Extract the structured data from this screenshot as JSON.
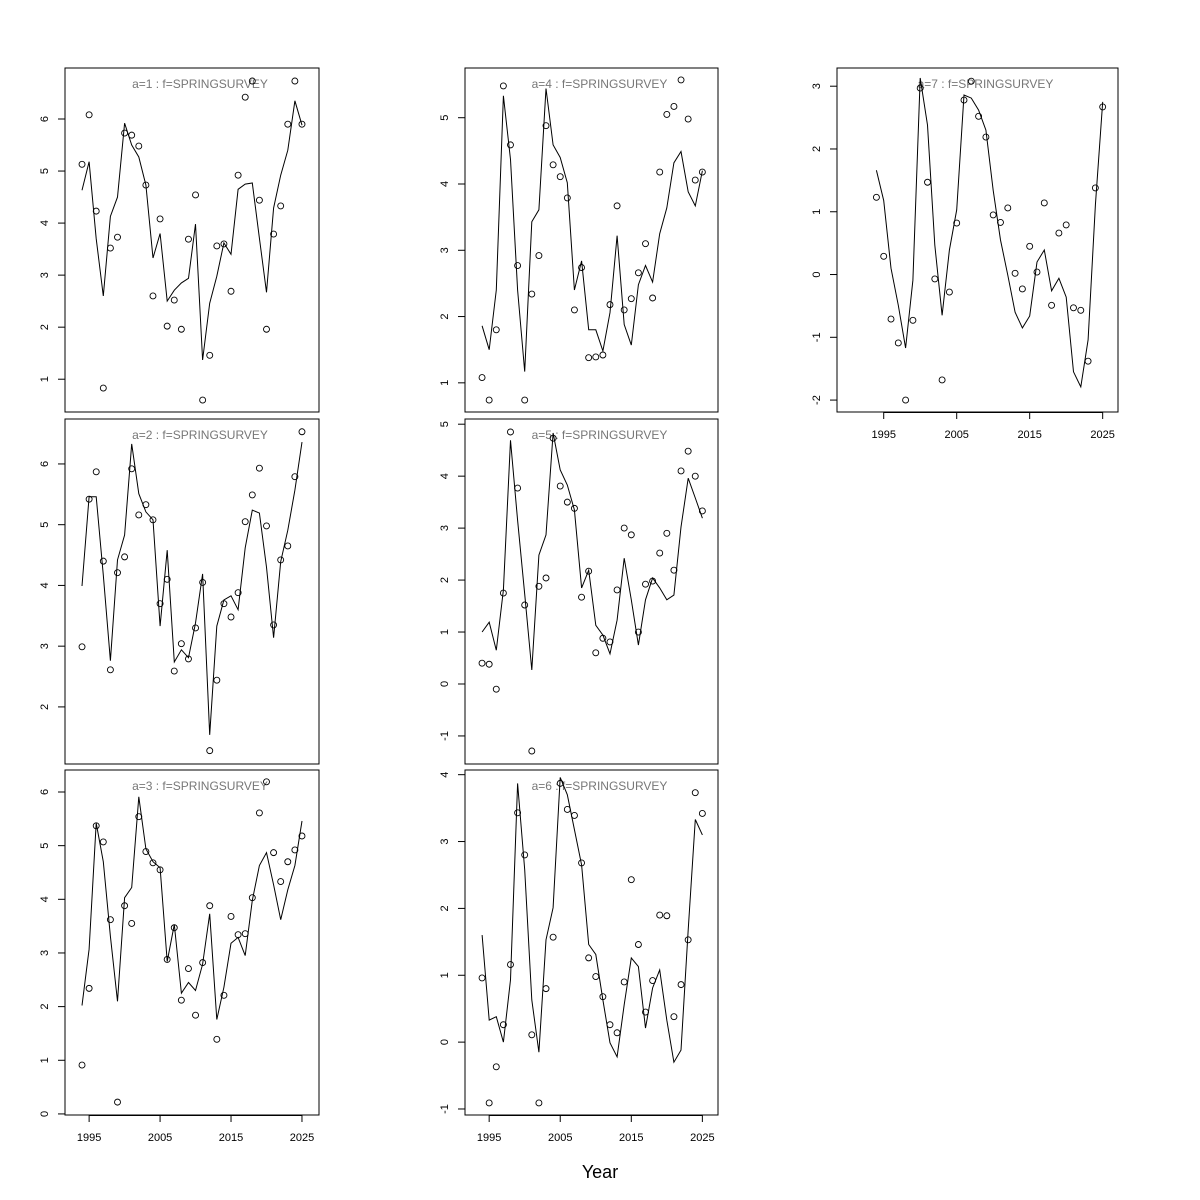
{
  "xlabel": "Year",
  "chart_data": [
    {
      "type": "line",
      "title": "a=1  :  f=SPRINGSURVEY",
      "xlim": [
        1991.6,
        2027.4
      ],
      "ylim": [
        0.37,
        6.98
      ],
      "yticks": [
        1,
        2,
        3,
        4,
        5,
        6
      ],
      "x": [
        1994,
        1995,
        1996,
        1997,
        1998,
        1999,
        2000,
        2001,
        2002,
        2003,
        2004,
        2005,
        2006,
        2007,
        2008,
        2009,
        2010,
        2011,
        2012,
        2013,
        2014,
        2015,
        2016,
        2017,
        2018,
        2019,
        2020,
        2021,
        2022,
        2023,
        2024,
        2025
      ],
      "observed": [
        5.13,
        6.08,
        4.23,
        0.83,
        3.52,
        3.73,
        5.73,
        5.69,
        5.48,
        4.73,
        2.6,
        4.08,
        2.02,
        2.52,
        1.96,
        3.69,
        4.54,
        0.6,
        1.46,
        3.56,
        3.6,
        2.69,
        4.92,
        6.42,
        6.73,
        4.44,
        1.96,
        3.79,
        4.33,
        5.9,
        6.73,
        5.9
      ],
      "fitted": [
        4.63,
        5.18,
        3.7,
        2.6,
        4.13,
        4.5,
        5.92,
        5.5,
        5.27,
        4.73,
        3.33,
        3.8,
        2.5,
        2.71,
        2.85,
        2.94,
        3.98,
        1.37,
        2.46,
        2.98,
        3.62,
        3.4,
        4.65,
        4.75,
        4.77,
        3.71,
        2.67,
        4.29,
        4.92,
        5.4,
        6.35,
        5.88
      ]
    },
    {
      "type": "line",
      "title": "a=2  :  f=SPRINGSURVEY",
      "xlim": [
        1991.6,
        2027.4
      ],
      "ylim": [
        1.06,
        6.74
      ],
      "yticks": [
        2,
        3,
        4,
        5,
        6
      ],
      "x": [
        1994,
        1995,
        1996,
        1997,
        1998,
        1999,
        2000,
        2001,
        2002,
        2003,
        2004,
        2005,
        2006,
        2007,
        2008,
        2009,
        2010,
        2011,
        2012,
        2013,
        2014,
        2015,
        2016,
        2017,
        2018,
        2019,
        2020,
        2021,
        2022,
        2023,
        2024,
        2025
      ],
      "observed": [
        2.99,
        5.42,
        5.87,
        4.4,
        2.61,
        4.21,
        4.47,
        5.92,
        5.16,
        5.33,
        5.08,
        3.7,
        4.1,
        2.59,
        3.04,
        2.79,
        3.3,
        4.05,
        1.28,
        2.44,
        3.7,
        3.48,
        3.88,
        5.05,
        5.49,
        5.93,
        4.98,
        3.35,
        4.42,
        4.65,
        5.79,
        6.53
      ],
      "fitted": [
        3.99,
        5.46,
        5.46,
        4.17,
        2.76,
        4.42,
        4.83,
        6.33,
        5.51,
        5.21,
        5.08,
        3.33,
        4.58,
        2.74,
        2.94,
        2.81,
        3.38,
        4.19,
        1.54,
        3.33,
        3.76,
        3.83,
        3.6,
        4.62,
        5.24,
        5.19,
        4.3,
        3.14,
        4.39,
        4.91,
        5.57,
        6.36
      ]
    },
    {
      "type": "line",
      "title": "a=3  :  f=SPRINGSURVEY",
      "xlim": [
        1991.6,
        2027.4
      ],
      "ylim": [
        -0.02,
        6.41
      ],
      "yticks": [
        0,
        1,
        2,
        3,
        4,
        5,
        6
      ],
      "xticks": [
        1995,
        2005,
        2015,
        2025
      ],
      "x": [
        1994,
        1995,
        1996,
        1997,
        1998,
        1999,
        2000,
        2001,
        2002,
        2003,
        2004,
        2005,
        2006,
        2007,
        2008,
        2009,
        2010,
        2011,
        2012,
        2013,
        2014,
        2015,
        2016,
        2017,
        2018,
        2019,
        2020,
        2021,
        2022,
        2023,
        2024,
        2025
      ],
      "observed": [
        0.91,
        2.34,
        5.37,
        5.07,
        3.62,
        0.22,
        3.88,
        3.55,
        5.54,
        4.89,
        4.68,
        4.55,
        2.88,
        3.47,
        2.12,
        2.71,
        1.84,
        2.82,
        3.88,
        1.39,
        2.21,
        3.68,
        3.34,
        3.36,
        4.03,
        5.61,
        6.19,
        4.87,
        4.33,
        4.7,
        4.92,
        5.18
      ],
      "fitted": [
        2.02,
        3.07,
        5.42,
        4.7,
        3.31,
        2.1,
        4.03,
        4.22,
        5.91,
        4.94,
        4.7,
        4.59,
        2.84,
        3.53,
        2.25,
        2.45,
        2.3,
        2.79,
        3.73,
        1.76,
        2.36,
        3.18,
        3.29,
        2.95,
        3.98,
        4.63,
        4.87,
        4.27,
        3.62,
        4.18,
        4.63,
        5.46
      ]
    },
    {
      "type": "line",
      "title": "a=4  :  f=SPRINGSURVEY",
      "xlim": [
        1991.6,
        2027.2
      ],
      "ylim": [
        0.56,
        5.75
      ],
      "yticks": [
        1,
        2,
        3,
        4,
        5
      ],
      "x": [
        1994,
        1995,
        1996,
        1997,
        1998,
        1999,
        2000,
        2001,
        2002,
        2003,
        2004,
        2005,
        2006,
        2007,
        2008,
        2009,
        2010,
        2011,
        2012,
        2013,
        2014,
        2015,
        2016,
        2017,
        2018,
        2019,
        2020,
        2021,
        2022,
        2023,
        2024,
        2025
      ],
      "observed": [
        1.08,
        0.74,
        1.8,
        5.48,
        4.59,
        2.77,
        0.74,
        2.34,
        2.92,
        4.88,
        4.29,
        4.11,
        3.79,
        2.1,
        2.74,
        1.38,
        1.39,
        1.42,
        2.18,
        3.67,
        2.1,
        2.27,
        2.66,
        3.1,
        2.28,
        4.18,
        5.05,
        5.17,
        5.57,
        4.98,
        4.06,
        4.18
      ],
      "fitted": [
        1.86,
        1.5,
        2.4,
        5.33,
        4.37,
        2.4,
        1.17,
        3.43,
        3.61,
        5.44,
        4.59,
        4.4,
        4.02,
        2.4,
        2.84,
        1.8,
        1.8,
        1.48,
        2.06,
        3.22,
        1.88,
        1.57,
        2.48,
        2.77,
        2.52,
        3.25,
        3.64,
        4.32,
        4.49,
        3.88,
        3.67,
        4.2
      ]
    },
    {
      "type": "line",
      "title": "a=5  :  f=SPRINGSURVEY",
      "xlim": [
        1991.6,
        2027.2
      ],
      "ylim": [
        -1.54,
        5.1
      ],
      "yticks": [
        -1,
        0,
        1,
        2,
        3,
        4,
        5
      ],
      "x": [
        1994,
        1995,
        1996,
        1997,
        1998,
        1999,
        2000,
        2001,
        2002,
        2003,
        2004,
        2005,
        2006,
        2007,
        2008,
        2009,
        2010,
        2011,
        2012,
        2013,
        2014,
        2015,
        2016,
        2017,
        2018,
        2019,
        2020,
        2021,
        2022,
        2023,
        2024,
        2025
      ],
      "observed": [
        0.4,
        0.38,
        -0.1,
        1.75,
        4.85,
        3.77,
        1.52,
        -1.29,
        1.88,
        2.04,
        4.73,
        3.81,
        3.5,
        3.38,
        1.67,
        2.17,
        0.6,
        0.88,
        0.81,
        1.81,
        3.0,
        2.87,
        1.0,
        1.92,
        1.98,
        2.52,
        2.9,
        2.19,
        4.1,
        4.48,
        4.0,
        3.33
      ],
      "fitted": [
        1.0,
        1.19,
        0.65,
        1.81,
        4.69,
        3.15,
        1.73,
        0.27,
        2.48,
        2.87,
        4.83,
        4.12,
        3.83,
        3.35,
        1.85,
        2.19,
        1.13,
        0.94,
        0.58,
        1.23,
        2.42,
        1.62,
        0.75,
        1.62,
        2.04,
        1.85,
        1.62,
        1.71,
        3.02,
        3.96,
        3.58,
        3.19
      ]
    },
    {
      "type": "line",
      "title": "a=6  :  f=SPRINGSURVEY",
      "xlim": [
        1991.6,
        2027.2
      ],
      "ylim": [
        -1.09,
        4.07
      ],
      "yticks": [
        -1,
        0,
        1,
        2,
        3,
        4
      ],
      "xticks": [
        1995,
        2005,
        2015,
        2025
      ],
      "x": [
        1994,
        1995,
        1996,
        1997,
        1998,
        1999,
        2000,
        2001,
        2002,
        2003,
        2004,
        2005,
        2006,
        2007,
        2008,
        2009,
        2010,
        2011,
        2012,
        2013,
        2014,
        2015,
        2016,
        2017,
        2018,
        2019,
        2020,
        2021,
        2022,
        2023,
        2024,
        2025
      ],
      "observed": [
        0.96,
        -0.91,
        -0.37,
        0.26,
        1.16,
        3.43,
        2.8,
        0.11,
        -0.91,
        0.8,
        1.57,
        3.87,
        3.48,
        3.39,
        2.68,
        1.26,
        0.98,
        0.68,
        0.26,
        0.14,
        0.9,
        2.43,
        1.46,
        0.45,
        0.92,
        1.9,
        1.89,
        0.38,
        0.86,
        1.53,
        3.73,
        3.42
      ],
      "fitted": [
        1.6,
        0.33,
        0.38,
        0.0,
        0.93,
        3.87,
        2.58,
        0.63,
        -0.15,
        1.53,
        2.01,
        3.96,
        3.7,
        3.18,
        2.65,
        1.46,
        1.31,
        0.63,
        -0.01,
        -0.22,
        0.56,
        1.26,
        1.13,
        0.21,
        0.81,
        1.08,
        0.33,
        -0.3,
        -0.12,
        1.68,
        3.33,
        3.1
      ]
    },
    {
      "type": "line",
      "title": "a=7  :  f=SPRINGSURVEY",
      "xlim": [
        1988.6,
        2027.1
      ],
      "ylim": [
        -2.19,
        3.29
      ],
      "yticks": [
        -2,
        -1,
        0,
        1,
        2,
        3
      ],
      "xticks": [
        1995,
        2005,
        2015,
        2025
      ],
      "x": [
        1994,
        1995,
        1996,
        1997,
        1998,
        1999,
        2000,
        2001,
        2002,
        2003,
        2004,
        2005,
        2006,
        2007,
        2008,
        2009,
        2010,
        2011,
        2012,
        2013,
        2014,
        2015,
        2016,
        2017,
        2018,
        2019,
        2020,
        2021,
        2022,
        2023,
        2024,
        2025
      ],
      "observed": [
        1.23,
        0.29,
        -0.71,
        -1.09,
        -2.0,
        -0.73,
        2.97,
        1.47,
        -0.07,
        -1.68,
        -0.28,
        0.82,
        2.78,
        3.08,
        2.52,
        2.19,
        0.95,
        0.83,
        1.06,
        0.02,
        -0.23,
        0.45,
        0.04,
        1.14,
        -0.49,
        0.66,
        0.79,
        -0.53,
        -0.57,
        -1.38,
        1.38,
        2.67
      ],
      "fitted": [
        1.66,
        1.18,
        0.1,
        -0.49,
        -1.17,
        -0.09,
        3.13,
        2.38,
        0.47,
        -0.65,
        0.39,
        1.03,
        2.86,
        2.81,
        2.62,
        2.3,
        1.34,
        0.55,
        -0.01,
        -0.6,
        -0.85,
        -0.66,
        0.2,
        0.39,
        -0.26,
        -0.06,
        -0.36,
        -1.55,
        -1.79,
        -1.04,
        1.11,
        2.75
      ]
    }
  ]
}
